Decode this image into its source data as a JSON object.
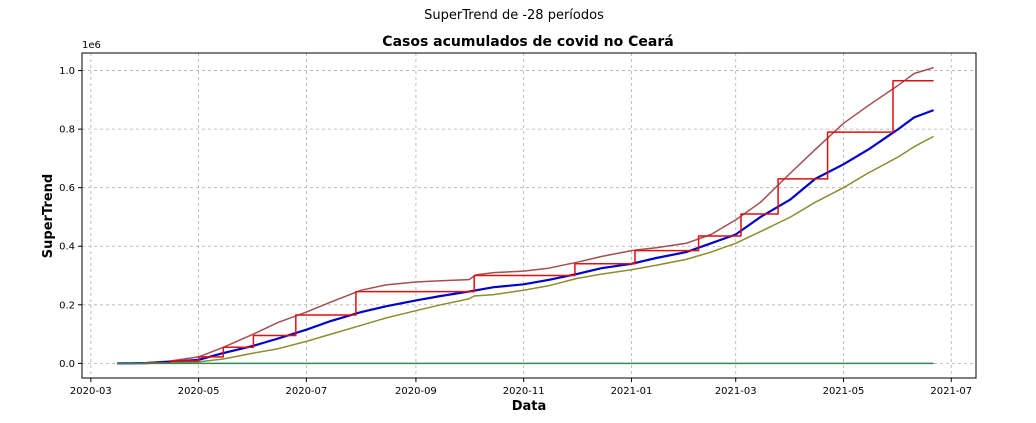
{
  "figure": {
    "suptitle": "SuperTrend de -28 períodos"
  },
  "chart_data": {
    "type": "line",
    "title": "Casos acumulados de covid no Ceará",
    "xlabel": "Data",
    "ylabel": "SuperTrend",
    "y_offset_label": "1e6",
    "xlim": [
      "2020-02-25",
      "2021-07-15"
    ],
    "ylim": [
      -0.05,
      1.06
    ],
    "y_ticks": [
      0.0,
      0.2,
      0.4,
      0.6,
      0.8,
      1.0
    ],
    "y_tick_labels": [
      "0.0",
      "0.2",
      "0.4",
      "0.6",
      "0.8",
      "1.0"
    ],
    "x_ticks": [
      "2020-03-01",
      "2020-05-01",
      "2020-07-01",
      "2020-09-01",
      "2020-11-01",
      "2021-01-01",
      "2021-03-01",
      "2021-05-01",
      "2021-07-01"
    ],
    "x_tick_labels": [
      "2020-03",
      "2020-05",
      "2020-07",
      "2020-09",
      "2020-11",
      "2021-01",
      "2021-03",
      "2021-05",
      "2021-07"
    ],
    "grid": true,
    "series": [
      {
        "color": "#a64d4d",
        "x": [
          "2020-03-16",
          "2020-04-01",
          "2020-04-15",
          "2020-05-01",
          "2020-05-15",
          "2020-06-01",
          "2020-06-15",
          "2020-07-01",
          "2020-07-15",
          "2020-08-01",
          "2020-08-15",
          "2020-09-01",
          "2020-09-15",
          "2020-10-01",
          "2020-10-05",
          "2020-10-15",
          "2020-11-01",
          "2020-11-15",
          "2020-12-01",
          "2020-12-15",
          "2021-01-01",
          "2021-01-15",
          "2021-02-01",
          "2021-02-15",
          "2021-03-01",
          "2021-03-15",
          "2021-04-01",
          "2021-04-15",
          "2021-05-01",
          "2021-05-15",
          "2021-06-01",
          "2021-06-10",
          "2021-06-21"
        ],
        "values": [
          0.0,
          0.002,
          0.008,
          0.022,
          0.055,
          0.1,
          0.14,
          0.175,
          0.21,
          0.25,
          0.268,
          0.278,
          0.282,
          0.286,
          0.302,
          0.31,
          0.315,
          0.325,
          0.345,
          0.365,
          0.385,
          0.395,
          0.41,
          0.44,
          0.49,
          0.55,
          0.65,
          0.73,
          0.82,
          0.88,
          0.95,
          0.99,
          1.01
        ]
      },
      {
        "color": "#0000cc",
        "x": [
          "2020-03-16",
          "2020-04-01",
          "2020-04-15",
          "2020-05-01",
          "2020-05-15",
          "2020-06-01",
          "2020-06-15",
          "2020-07-01",
          "2020-07-15",
          "2020-08-01",
          "2020-08-15",
          "2020-09-01",
          "2020-09-15",
          "2020-10-01",
          "2020-10-15",
          "2020-11-01",
          "2020-11-15",
          "2020-12-01",
          "2020-12-15",
          "2021-01-01",
          "2021-01-15",
          "2021-02-01",
          "2021-02-15",
          "2021-03-01",
          "2021-03-15",
          "2021-04-01",
          "2021-04-15",
          "2021-05-01",
          "2021-05-15",
          "2021-06-01",
          "2021-06-10",
          "2021-06-21"
        ],
        "values": [
          0.0,
          0.001,
          0.005,
          0.012,
          0.035,
          0.06,
          0.085,
          0.115,
          0.145,
          0.175,
          0.195,
          0.215,
          0.23,
          0.245,
          0.26,
          0.27,
          0.285,
          0.305,
          0.325,
          0.34,
          0.36,
          0.38,
          0.41,
          0.44,
          0.5,
          0.56,
          0.63,
          0.68,
          0.73,
          0.8,
          0.84,
          0.865
        ]
      },
      {
        "color": "#8c8c30",
        "x": [
          "2020-03-16",
          "2020-04-01",
          "2020-04-15",
          "2020-05-01",
          "2020-05-15",
          "2020-06-01",
          "2020-06-15",
          "2020-07-01",
          "2020-07-15",
          "2020-08-01",
          "2020-08-15",
          "2020-09-01",
          "2020-09-15",
          "2020-10-01",
          "2020-10-04",
          "2020-10-15",
          "2020-11-01",
          "2020-11-15",
          "2020-12-01",
          "2020-12-15",
          "2021-01-01",
          "2021-01-15",
          "2021-02-01",
          "2021-02-15",
          "2021-03-01",
          "2021-03-15",
          "2021-04-01",
          "2021-04-15",
          "2021-05-01",
          "2021-05-15",
          "2021-06-01",
          "2021-06-10",
          "2021-06-21"
        ],
        "values": [
          0.0,
          0.0,
          0.002,
          0.005,
          0.015,
          0.035,
          0.05,
          0.075,
          0.1,
          0.13,
          0.155,
          0.18,
          0.2,
          0.22,
          0.23,
          0.235,
          0.25,
          0.265,
          0.29,
          0.305,
          0.32,
          0.335,
          0.355,
          0.38,
          0.41,
          0.45,
          0.5,
          0.55,
          0.6,
          0.65,
          0.705,
          0.74,
          0.775
        ]
      },
      {
        "color": "#dd1111",
        "step": true,
        "x": [
          "2020-03-16",
          "2020-04-01",
          "2020-04-15",
          "2020-05-01",
          "2020-05-15",
          "2020-06-01",
          "2020-06-25",
          "2020-07-29",
          "2020-10-04",
          "2020-11-30",
          "2021-01-03",
          "2021-02-08",
          "2021-03-04",
          "2021-03-25",
          "2021-04-22",
          "2021-05-29",
          "2021-06-21"
        ],
        "values": [
          0.0,
          0.002,
          0.008,
          0.022,
          0.055,
          0.095,
          0.165,
          0.245,
          0.3,
          0.34,
          0.385,
          0.435,
          0.51,
          0.63,
          0.79,
          0.965,
          0.965
        ]
      },
      {
        "color": "#2e8b57",
        "x": [
          "2020-03-16",
          "2021-06-21"
        ],
        "values": [
          0.0,
          0.0
        ]
      }
    ]
  }
}
